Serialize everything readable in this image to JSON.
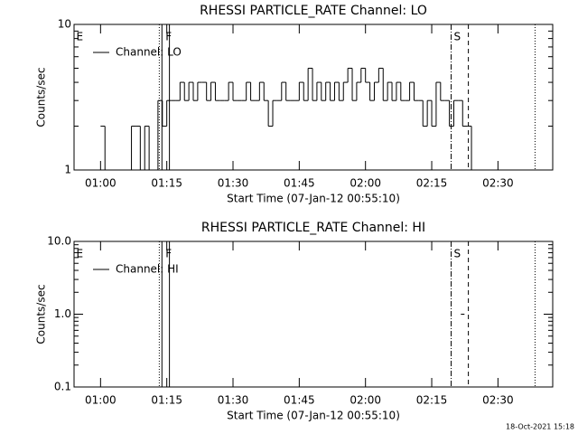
{
  "chart_data": [
    {
      "type": "line",
      "title": "RHESSI PARTICLE_RATE Channel: LO",
      "xlabel": "Start Time (07-Jan-12 00:55:10)",
      "ylabel": "Counts/sec",
      "log_y": true,
      "color": "#000000",
      "xlim": [
        54,
        162.4
      ],
      "xticks": [
        {
          "value": 60,
          "label": "01:00"
        },
        {
          "value": 75,
          "label": "01:15"
        },
        {
          "value": 90,
          "label": "01:30"
        },
        {
          "value": 105,
          "label": "01:45"
        },
        {
          "value": 120,
          "label": "02:00"
        },
        {
          "value": 135,
          "label": "02:15"
        },
        {
          "value": 150,
          "label": "02:30"
        }
      ],
      "ylim": [
        1,
        10
      ],
      "yticks": [
        1,
        10
      ],
      "yminor": [
        2,
        3,
        4,
        5,
        6,
        7,
        8,
        9
      ],
      "x": [
        60,
        61,
        62,
        63,
        64,
        65,
        66,
        67,
        68,
        69,
        70,
        71,
        72,
        73,
        74,
        75,
        76,
        77,
        78,
        79,
        80,
        81,
        82,
        83,
        84,
        85,
        86,
        87,
        88,
        89,
        90,
        91,
        92,
        93,
        94,
        95,
        96,
        97,
        98,
        99,
        100,
        101,
        102,
        103,
        104,
        105,
        106,
        107,
        108,
        109,
        110,
        111,
        112,
        113,
        114,
        115,
        116,
        117,
        118,
        119,
        120,
        121,
        122,
        123,
        124,
        125,
        126,
        127,
        128,
        129,
        130,
        131,
        132,
        133,
        134,
        135,
        136,
        137,
        138,
        139,
        140,
        141,
        142,
        143,
        144
      ],
      "series": [
        {
          "name": "Channel: LO",
          "color": "#000000",
          "values": [
            2,
            1,
            1,
            1,
            1,
            1,
            1,
            2,
            2,
            1,
            2,
            1,
            1,
            3,
            2,
            3,
            3,
            3,
            4,
            3,
            4,
            3,
            4,
            4,
            3,
            4,
            3,
            3,
            3,
            4,
            3,
            3,
            3,
            4,
            3,
            3,
            4,
            3,
            2,
            3,
            3,
            4,
            3,
            3,
            3,
            4,
            3,
            5,
            3,
            4,
            3,
            4,
            3,
            4,
            3,
            4,
            5,
            3,
            4,
            5,
            4,
            3,
            4,
            5,
            3,
            4,
            3,
            4,
            3,
            3,
            4,
            3,
            3,
            2,
            3,
            2,
            4,
            3,
            3,
            2,
            3,
            3,
            2,
            2,
            1
          ]
        }
      ],
      "vlines": [
        {
          "x": 73.3,
          "style": "dotted"
        },
        {
          "x": 73.9,
          "style": "solid"
        },
        {
          "x": 75.6,
          "style": "solid"
        },
        {
          "x": 139.4,
          "style": "dashdot"
        },
        {
          "x": 143.3,
          "style": "dashed"
        },
        {
          "x": 158.4,
          "style": "dotted"
        }
      ],
      "flags": [
        {
          "label": "E",
          "x": 54.5
        },
        {
          "label": "F",
          "x": 74.7
        },
        {
          "label": "S",
          "x": 140
        }
      ]
    },
    {
      "type": "line",
      "title": "RHESSI PARTICLE_RATE Channel: HI",
      "xlabel": "Start Time (07-Jan-12 00:55:10)",
      "ylabel": "Counts/sec",
      "log_y": true,
      "color": "#000000",
      "xlim": [
        54,
        162.4
      ],
      "xticks": [
        {
          "value": 60,
          "label": "01:00"
        },
        {
          "value": 75,
          "label": "01:15"
        },
        {
          "value": 90,
          "label": "01:30"
        },
        {
          "value": 105,
          "label": "01:45"
        },
        {
          "value": 120,
          "label": "02:00"
        },
        {
          "value": 135,
          "label": "02:15"
        },
        {
          "value": 150,
          "label": "02:30"
        }
      ],
      "ylim": [
        0.1,
        10
      ],
      "yticks": [
        0.1,
        {
          "value": 1,
          "label": "1.0"
        },
        {
          "value": 10,
          "label": "10.0"
        }
      ],
      "yminor": [
        0.2,
        0.3,
        0.4,
        0.5,
        0.6,
        0.7,
        0.8,
        0.9,
        2,
        3,
        4,
        5,
        6,
        7,
        8,
        9
      ],
      "x": [
        141.6
      ],
      "series": [
        {
          "name": "Channel: HI",
          "color": "#000000",
          "values": [
            1
          ]
        }
      ],
      "vlines": [
        {
          "x": 73.3,
          "style": "dotted"
        },
        {
          "x": 73.9,
          "style": "solid"
        },
        {
          "x": 75.6,
          "style": "solid"
        },
        {
          "x": 139.4,
          "style": "dashdot"
        },
        {
          "x": 143.3,
          "style": "dashed"
        },
        {
          "x": 158.4,
          "style": "dotted"
        }
      ],
      "flags": [
        {
          "label": "E",
          "x": 54.5
        },
        {
          "label": "F",
          "x": 74.7
        },
        {
          "label": "S",
          "x": 140
        }
      ]
    }
  ],
  "footer": "18-Oct-2021 15:18"
}
